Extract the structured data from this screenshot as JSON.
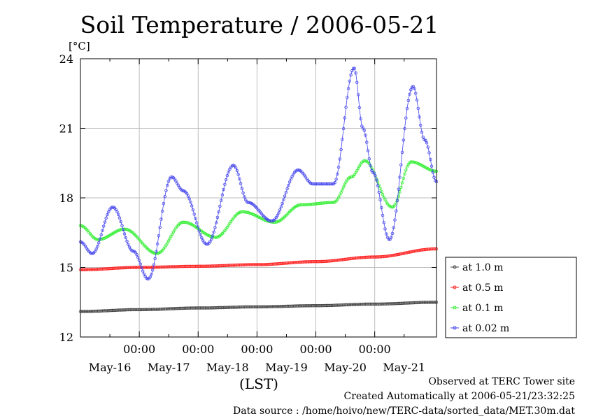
{
  "chart_data": {
    "type": "line",
    "title": "Soil Temperature / 2006-05-21",
    "ylabel": "[°C]",
    "xlabel": "(LST)",
    "ylim": [
      12,
      24
    ],
    "yticks": [
      12,
      15,
      18,
      21,
      24
    ],
    "xlim": [
      -1,
      5.05
    ],
    "midnight_ticks": [
      0,
      1,
      2,
      3,
      4
    ],
    "midnight_label": "00:00",
    "day_labels": [
      {
        "label": "May-16",
        "pos": -0.5
      },
      {
        "label": "May-17",
        "pos": 0.5
      },
      {
        "label": "May-18",
        "pos": 1.5
      },
      {
        "label": "May-19",
        "pos": 2.5
      },
      {
        "label": "May-20",
        "pos": 3.5
      },
      {
        "label": "May-21",
        "pos": 4.5
      }
    ],
    "grid": true,
    "legend_position": "right",
    "series": [
      {
        "name": "at 1.0 m",
        "color": "#444444",
        "x": [
          -1.0,
          0.0,
          1.0,
          2.0,
          3.0,
          4.0,
          5.05
        ],
        "y": [
          13.1,
          13.18,
          13.25,
          13.3,
          13.35,
          13.42,
          13.5
        ]
      },
      {
        "name": "at 0.5 m",
        "color": "#ff2020",
        "x": [
          -1.0,
          0.0,
          1.0,
          2.0,
          3.0,
          4.0,
          5.05
        ],
        "y": [
          14.9,
          15.0,
          15.05,
          15.12,
          15.25,
          15.45,
          15.8
        ]
      },
      {
        "name": "at 0.1 m",
        "color": "#33ee33",
        "x": [
          -1.0,
          -0.7,
          -0.25,
          0.3,
          0.75,
          1.3,
          1.75,
          2.3,
          2.75,
          3.3,
          3.6,
          3.83,
          4.3,
          4.62,
          5.05
        ],
        "y": [
          16.8,
          16.2,
          16.65,
          15.6,
          16.95,
          16.3,
          17.4,
          16.95,
          17.7,
          17.8,
          18.9,
          19.6,
          17.6,
          19.55,
          19.15
        ]
      },
      {
        "name": "at 0.02 m",
        "color": "#4444ee",
        "x": [
          -1.0,
          -0.8,
          -0.45,
          -0.1,
          0.15,
          0.55,
          0.75,
          1.15,
          1.6,
          1.85,
          2.25,
          2.7,
          2.95,
          3.1,
          3.3,
          3.65,
          3.8,
          3.97,
          4.25,
          4.65,
          4.85,
          5.05
        ],
        "y": [
          16.1,
          15.6,
          17.6,
          15.7,
          14.5,
          18.9,
          18.3,
          16.0,
          19.4,
          17.8,
          17.0,
          19.2,
          18.6,
          18.6,
          18.6,
          23.6,
          21.0,
          19.1,
          16.2,
          22.8,
          20.5,
          18.7
        ]
      }
    ]
  },
  "footer": {
    "line1": "Observed at TERC Tower site",
    "line2": "Created Automatically at 2006-05-21/23:32:25",
    "line3": "Data source : /home/hoivo/new/TERC-data/sorted_data/MET.30m.dat"
  }
}
